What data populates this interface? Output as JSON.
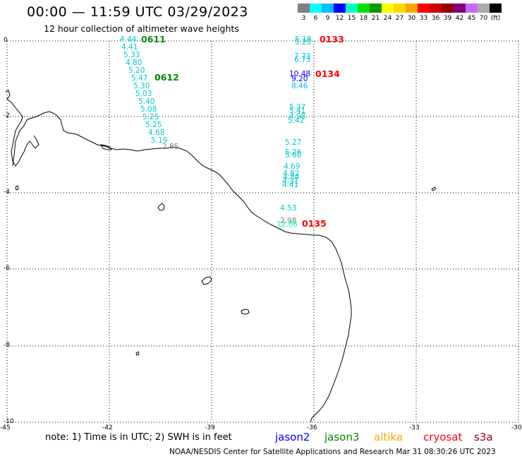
{
  "header": {
    "title": "00:00 — 11:59 UTC 03/29/2023",
    "subtitle": "12 hour collection of altimeter wave heights"
  },
  "colorbar": {
    "colors": [
      "#808080",
      "#00ffff",
      "#00bfff",
      "#0000ff",
      "#00ffbf",
      "#00e000",
      "#009900",
      "#ffff00",
      "#ffd700",
      "#ffa500",
      "#ff0000",
      "#cc0000",
      "#990000",
      "#800080",
      "#cc66ff",
      "#aaaaaa",
      "#000000"
    ],
    "labels": [
      "3",
      "6",
      "9",
      "12",
      "15",
      "18",
      "21",
      "24",
      "27",
      "30",
      "33",
      "36",
      "39",
      "42",
      "45",
      "70",
      "(ft)"
    ]
  },
  "axes": {
    "y_ticks": [
      "0",
      "-2",
      "-4",
      "-6",
      "-8",
      "-10"
    ],
    "x_ticks": [
      "-45",
      "-42",
      "-39",
      "-36",
      "-33",
      "-30"
    ]
  },
  "track_west": {
    "pass_label_top": "0611",
    "pass_label_mid": "0612",
    "pass_color": "#008800",
    "values": [
      {
        "v": "4.44",
        "c": "#00cccc"
      },
      {
        "v": "4.41",
        "c": "#00cccc"
      },
      {
        "v": "5.33",
        "c": "#00cccc"
      },
      {
        "v": "4.80",
        "c": "#00cccc"
      },
      {
        "v": "5.20",
        "c": "#00cccc"
      },
      {
        "v": "5.47",
        "c": "#00cccc"
      },
      {
        "v": "5.30",
        "c": "#00cccc"
      },
      {
        "v": "5.03",
        "c": "#00cccc"
      },
      {
        "v": "5.40",
        "c": "#00cccc"
      },
      {
        "v": "5.08",
        "c": "#00cccc"
      },
      {
        "v": "5.25",
        "c": "#00cccc"
      },
      {
        "v": "5.25",
        "c": "#00cccc"
      },
      {
        "v": "4.68",
        "c": "#00cccc"
      },
      {
        "v": "5.19",
        "c": "#00cccc"
      },
      {
        "v": "2.85",
        "c": "#808080"
      }
    ]
  },
  "track_east": {
    "pass_color": "#ff0000",
    "pass_labels": [
      "0133",
      "0134",
      "0135"
    ],
    "values": [
      {
        "v": "5.18",
        "c": "#00cccc"
      },
      {
        "v": "5.28",
        "c": "#00cccc"
      },
      {
        "v": "7.73",
        "c": "#00bfff"
      },
      {
        "v": "6.73",
        "c": "#00bfff"
      },
      {
        "v": "10.48",
        "c": "#0000ff"
      },
      {
        "v": "9.20",
        "c": "#0000ff"
      },
      {
        "v": "8.46",
        "c": "#00bfff"
      },
      {
        "v": "5.37",
        "c": "#00cccc"
      },
      {
        "v": "5.41",
        "c": "#00cccc"
      },
      {
        "v": "4.98",
        "c": "#00cccc"
      },
      {
        "v": "5.42",
        "c": "#00cccc"
      },
      {
        "v": "5.27",
        "c": "#00cccc"
      },
      {
        "v": "5.26",
        "c": "#00cccc"
      },
      {
        "v": "5.08",
        "c": "#00cccc"
      },
      {
        "v": "4.69",
        "c": "#00cccc"
      },
      {
        "v": "4.82",
        "c": "#00cccc"
      },
      {
        "v": "4.84",
        "c": "#00cccc"
      },
      {
        "v": "4.31",
        "c": "#00cccc"
      },
      {
        "v": "4.41",
        "c": "#00cccc"
      },
      {
        "v": "4.53",
        "c": "#00cccc"
      },
      {
        "v": "2.98",
        "c": "#808080"
      },
      {
        "v": "12.86",
        "c": "#00ff99"
      }
    ]
  },
  "footer": {
    "note": "note:  1) Time is in UTC; 2) SWH is in feet",
    "legend": [
      {
        "label": "jason2",
        "color": "#0000ff"
      },
      {
        "label": "jason3",
        "color": "#008800"
      },
      {
        "label": "altika",
        "color": "#ffa500"
      },
      {
        "label": "cryosat",
        "color": "#ff0000"
      },
      {
        "label": "s3a",
        "color": "#8b0000"
      }
    ],
    "credit": "NOAA/NESDIS Center for Satellite Applications and Research     Mar 31 08:30:26 UTC 2023"
  }
}
